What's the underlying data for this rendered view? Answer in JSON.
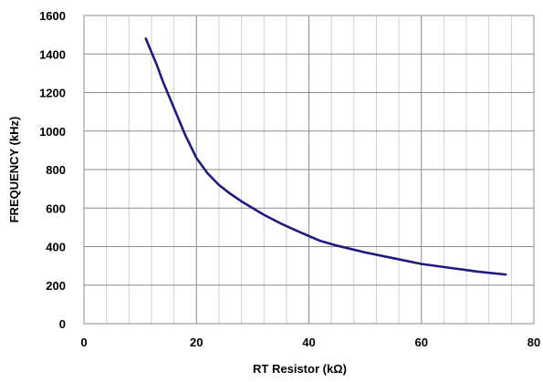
{
  "chart_data": {
    "type": "line",
    "title": "",
    "xlabel": "RT Resistor (kΩ)",
    "ylabel": "FREQUENCY (kHz)",
    "xlim": [
      0,
      80
    ],
    "ylim": [
      0,
      1600
    ],
    "x_ticks": [
      0,
      20,
      40,
      60,
      80
    ],
    "y_ticks": [
      0,
      200,
      400,
      600,
      800,
      1000,
      1200,
      1400,
      1600
    ],
    "x_minor_step": 4,
    "y_minor_step": 200,
    "grid": true,
    "legend": "none",
    "series": [
      {
        "color": "#1f1a80",
        "x": [
          11,
          12,
          13,
          14,
          15,
          16,
          18,
          20,
          22,
          24,
          26,
          28,
          30,
          32,
          35,
          38,
          40,
          42,
          45,
          50,
          55,
          60,
          65,
          70,
          75
        ],
        "y": [
          1480,
          1410,
          1340,
          1260,
          1190,
          1120,
          980,
          860,
          780,
          720,
          675,
          635,
          600,
          565,
          520,
          480,
          455,
          430,
          405,
          370,
          340,
          310,
          290,
          270,
          255
        ]
      }
    ]
  }
}
